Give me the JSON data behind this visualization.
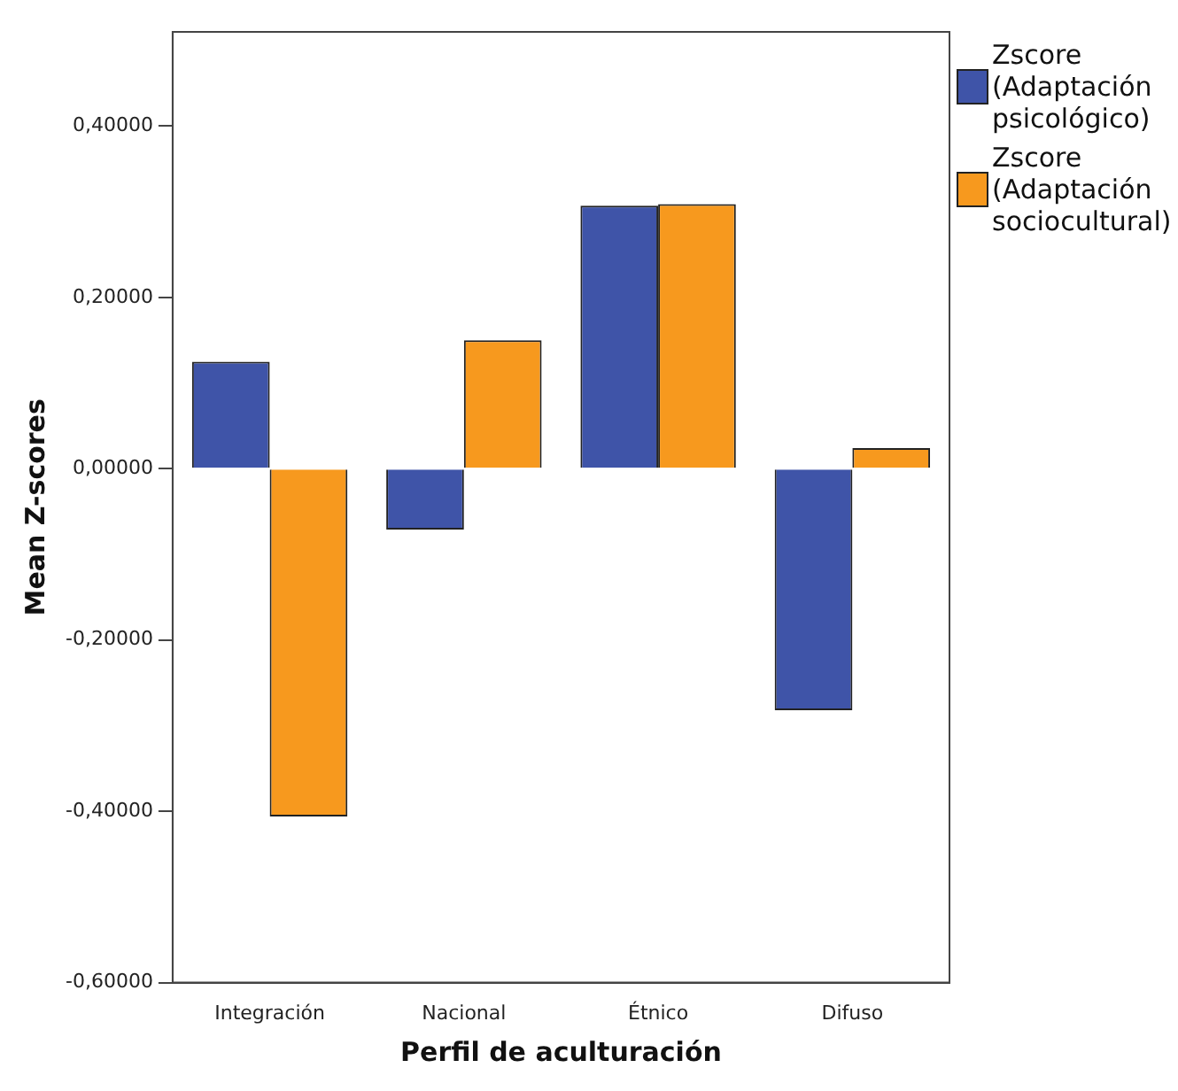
{
  "chart_data": {
    "type": "bar",
    "xlabel": "Perfil de aculturación",
    "ylabel": "Mean Z-scores",
    "categories": [
      "Integración",
      "Nacional",
      "Étnico",
      "Difuso"
    ],
    "series": [
      {
        "name": "Zscore (Adaptación psicológico)",
        "color": "#3f54a8",
        "values": [
          0.125,
          -0.071,
          0.307,
          -0.282
        ]
      },
      {
        "name": "Zscore (Adaptación sociocultural)",
        "color": "#f7991e",
        "values": [
          -0.406,
          0.15,
          0.309,
          0.024
        ]
      }
    ],
    "ylim": [
      -0.6,
      0.51
    ],
    "yticks": [
      {
        "value": -0.6,
        "label": "-0,60000"
      },
      {
        "value": -0.4,
        "label": "-0,40000"
      },
      {
        "value": -0.2,
        "label": "-0,20000"
      },
      {
        "value": 0,
        "label": "0,00000"
      },
      {
        "value": 0.2,
        "label": "0,20000"
      },
      {
        "value": 0.4,
        "label": "0,40000"
      }
    ],
    "grid": false,
    "legend": "top right"
  }
}
